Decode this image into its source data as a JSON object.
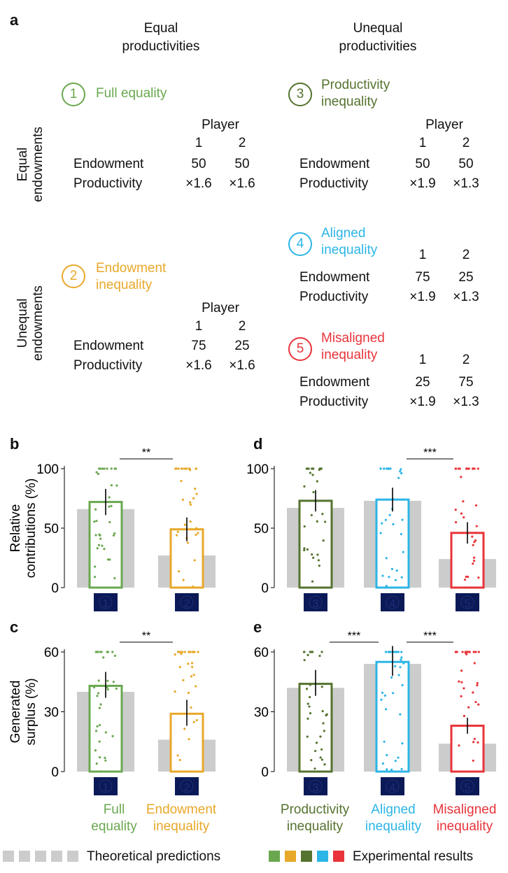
{
  "panel_a": {
    "label": "a",
    "col_headers": [
      "Equal\nproductivities",
      "Unequal\nproductivities"
    ],
    "row_headers": [
      "Equal\nendowments",
      "Unequal\nendowments"
    ],
    "table_labels": {
      "player": "Player",
      "endowment": "Endowment",
      "productivity": "Productivity"
    },
    "scenarios": [
      {
        "num": "1",
        "name": "Full equality",
        "color": "#6aa84f",
        "show_player_label": true,
        "p1": "1",
        "p2": "2",
        "end1": "50",
        "end2": "50",
        "prod1": "×1.6",
        "prod2": "×1.6"
      },
      {
        "num": "2",
        "name": "Endowment inequality",
        "color": "#e8a82a",
        "show_player_label": true,
        "p1": "1",
        "p2": "2",
        "end1": "75",
        "end2": "25",
        "prod1": "×1.6",
        "prod2": "×1.6"
      },
      {
        "num": "3",
        "name": "Productivity inequality",
        "color": "#55732f",
        "show_player_label": true,
        "p1": "1",
        "p2": "2",
        "end1": "50",
        "end2": "50",
        "prod1": "×1.9",
        "prod2": "×1.3"
      },
      {
        "num": "4",
        "name": "Aligned inequality",
        "color": "#2cb5e6",
        "show_player_label": false,
        "p1": "1",
        "p2": "2",
        "end1": "75",
        "end2": "25",
        "prod1": "×1.9",
        "prod2": "×1.3"
      },
      {
        "num": "5",
        "name": "Misaligned inequality",
        "color": "#e8343a",
        "show_player_label": false,
        "p1": "1",
        "p2": "2",
        "end1": "25",
        "end2": "75",
        "prod1": "×1.9",
        "prod2": "×1.3"
      }
    ]
  },
  "chart_data": [
    {
      "panel": "b",
      "type": "bar",
      "ylabel": "Relative\ncontributions (%)",
      "ylim": [
        0,
        100
      ],
      "yticks": [
        0,
        50,
        100
      ],
      "categories": [
        "1",
        "2"
      ],
      "experimental": [
        72,
        49
      ],
      "ci": [
        [
          61,
          83
        ],
        [
          39,
          59
        ]
      ],
      "theoretical": [
        66,
        27
      ],
      "significance": [
        {
          "from": 0,
          "to": 1,
          "label": "**"
        }
      ],
      "colors": [
        "#6aa84f",
        "#e8a82a"
      ]
    },
    {
      "panel": "d",
      "type": "bar",
      "ylabel": "",
      "ylim": [
        0,
        100
      ],
      "yticks": [
        0,
        50,
        100
      ],
      "categories": [
        "3",
        "4",
        "5"
      ],
      "experimental": [
        73,
        74,
        46
      ],
      "ci": [
        [
          64,
          82
        ],
        [
          64,
          84
        ],
        [
          37,
          55
        ]
      ],
      "theoretical": [
        67,
        73,
        24
      ],
      "significance": [
        {
          "from": 1,
          "to": 2,
          "label": "***"
        }
      ],
      "colors": [
        "#55732f",
        "#2cb5e6",
        "#e8343a"
      ]
    },
    {
      "panel": "c",
      "type": "bar",
      "ylabel": "Generated\nsurplus (%)",
      "ylim": [
        0,
        60
      ],
      "yticks": [
        0,
        30,
        60
      ],
      "categories": [
        "1",
        "2"
      ],
      "experimental": [
        43,
        29
      ],
      "ci": [
        [
          37,
          50
        ],
        [
          23,
          36
        ]
      ],
      "theoretical": [
        40,
        16
      ],
      "significance": [
        {
          "from": 0,
          "to": 1,
          "label": "**"
        }
      ],
      "colors": [
        "#6aa84f",
        "#e8a82a"
      ]
    },
    {
      "panel": "e",
      "type": "bar",
      "ylabel": "",
      "ylim": [
        0,
        60
      ],
      "yticks": [
        0,
        30,
        60
      ],
      "categories": [
        "3",
        "4",
        "5"
      ],
      "experimental": [
        44,
        55,
        23
      ],
      "ci": [
        [
          38,
          51
        ],
        [
          48,
          63
        ],
        [
          19,
          27
        ]
      ],
      "theoretical": [
        42,
        54,
        14
      ],
      "significance": [
        {
          "from": 0,
          "to": 1,
          "label": "***"
        },
        {
          "from": 1,
          "to": 2,
          "label": "***"
        }
      ],
      "colors": [
        "#55732f",
        "#2cb5e6",
        "#e8343a"
      ]
    }
  ],
  "x_categories": [
    "Full\nequality",
    "Endowment\ninequality",
    "Productivity\ninequality",
    "Aligned\ninequality",
    "Misaligned\ninequality"
  ],
  "legend": {
    "theoretical_label": "Theoretical predictions",
    "experimental_label": "Experimental results",
    "theoretical_color": "#cccccc",
    "experimental_colors": [
      "#6aa84f",
      "#e8a82a",
      "#55732f",
      "#2cb5e6",
      "#e8343a"
    ]
  }
}
